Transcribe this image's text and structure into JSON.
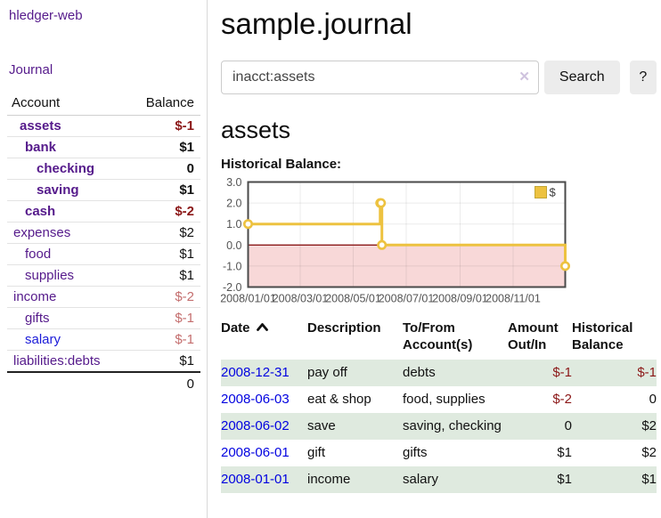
{
  "sidebar": {
    "app_title": "hledger-web",
    "journal_link": "Journal",
    "accounts": {
      "header_account": "Account",
      "header_balance": "Balance",
      "rows": [
        {
          "name": "assets",
          "balance": "$-1",
          "depth": 1,
          "bold": true,
          "current": true
        },
        {
          "name": "bank",
          "balance": "$1",
          "depth": 2,
          "bold": true
        },
        {
          "name": "checking",
          "balance": "0",
          "depth": 3,
          "bold": true
        },
        {
          "name": "saving",
          "balance": "$1",
          "depth": 3,
          "bold": true
        },
        {
          "name": "cash",
          "balance": "$-2",
          "depth": 2,
          "bold": true
        },
        {
          "name": "expenses",
          "balance": "$2",
          "depth": 1
        },
        {
          "name": "food",
          "balance": "$1",
          "depth": 2
        },
        {
          "name": "supplies",
          "balance": "$1",
          "depth": 2
        },
        {
          "name": "income",
          "balance": "$-2",
          "depth": 1,
          "muted": true
        },
        {
          "name": "gifts",
          "balance": "$-1",
          "depth": 2,
          "muted": true
        },
        {
          "name": "salary",
          "balance": "$-1",
          "depth": 2,
          "muted": true,
          "blue": true
        },
        {
          "name": "liabilities:debts",
          "balance": "$1",
          "depth": 1
        }
      ],
      "total": "0"
    }
  },
  "main": {
    "title": "sample.journal",
    "search": {
      "value": "inacct:assets",
      "clear_icon": "✕",
      "button_label": "Search",
      "help_label": "?"
    },
    "account_heading": "assets",
    "chart_label": "Historical Balance:"
  },
  "chart_data": {
    "type": "line",
    "title": "Historical Balance:",
    "x_ticks": [
      "2008/01/01",
      "2008/03/01",
      "2008/05/01",
      "2008/07/01",
      "2008/09/01",
      "2008/11/01"
    ],
    "y_ticks": [
      3.0,
      2.0,
      1.0,
      0.0,
      -1.0,
      -2.0
    ],
    "xlim": [
      "2008-01-01",
      "2008-12-31"
    ],
    "ylim": [
      -2,
      3
    ],
    "series": [
      {
        "name": "$",
        "color": "#edc240",
        "steps": true,
        "points": [
          [
            "2008-01-01",
            1
          ],
          [
            "2008-06-01",
            2
          ],
          [
            "2008-06-02",
            2
          ],
          [
            "2008-06-03",
            0
          ],
          [
            "2008-12-31",
            -1
          ]
        ]
      }
    ],
    "legend": {
      "label": "$",
      "position": "top-right"
    },
    "grid": true,
    "negative_region_color": "#f8d8d8",
    "zero_line_color": "#8b1a1a"
  },
  "register": {
    "headers": {
      "date": "Date",
      "description": "Description",
      "account": [
        "To/From",
        "Account(s)"
      ],
      "amount": [
        "Amount",
        "Out/In"
      ],
      "balance": [
        "Historical",
        "Balance"
      ]
    },
    "rows": [
      {
        "date": "2008-12-31",
        "description": "pay off",
        "accounts": "debts",
        "amount": "$-1",
        "balance": "$-1"
      },
      {
        "date": "2008-06-03",
        "description": "eat & shop",
        "accounts": "food, supplies",
        "amount": "$-2",
        "balance": "0"
      },
      {
        "date": "2008-06-02",
        "description": "save",
        "accounts": "saving, checking",
        "amount": "0",
        "balance": "$2"
      },
      {
        "date": "2008-06-01",
        "description": "gift",
        "accounts": "gifts",
        "amount": "$1",
        "balance": "$2"
      },
      {
        "date": "2008-01-01",
        "description": "income",
        "accounts": "salary",
        "amount": "$1",
        "balance": "$1"
      }
    ]
  }
}
